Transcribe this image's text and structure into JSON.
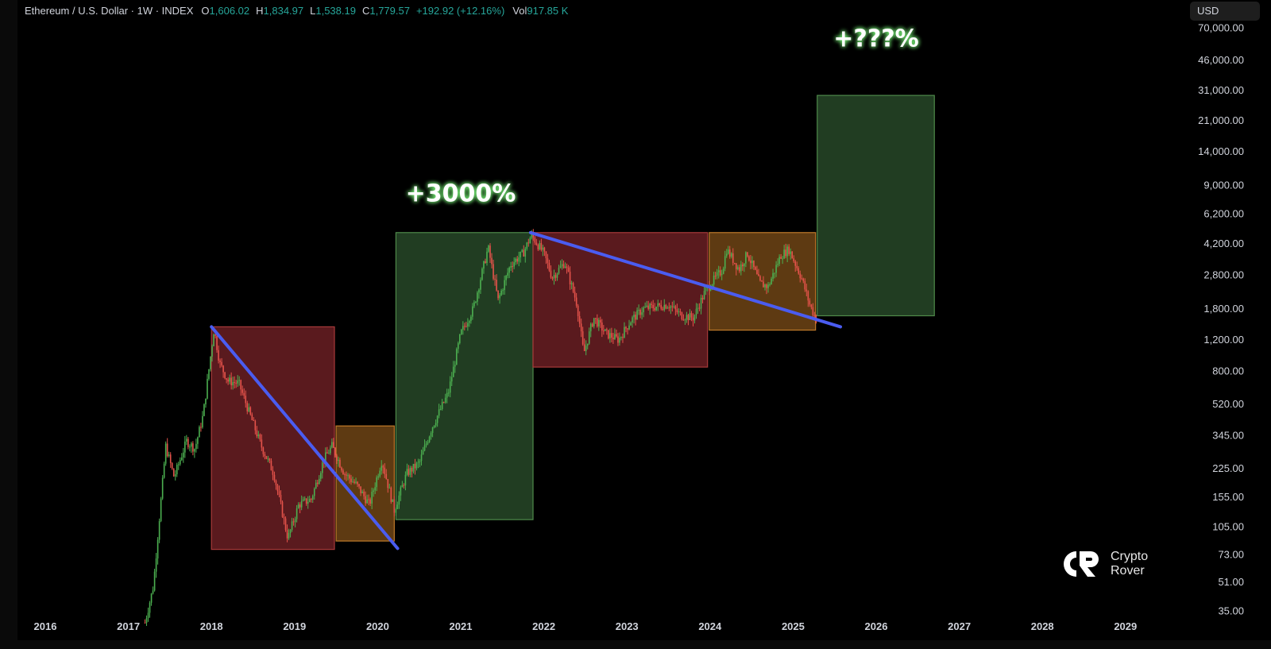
{
  "header": {
    "symbol": "Ethereum / U.S. Dollar · 1W · INDEX",
    "open_label": "O",
    "open": "1,606.02",
    "high_label": "H",
    "high": "1,834.97",
    "low_label": "L",
    "low": "1,538.19",
    "close_label": "C",
    "close": "1,779.57",
    "change": "+192.92 (+12.16%)",
    "vol_label": "Vol",
    "vol": "917.85 K"
  },
  "currency_button": "USD",
  "watermark": {
    "line1": "Crypto",
    "line2": "Rover"
  },
  "colors": {
    "background": "#000000",
    "up_candle": "#4caf50",
    "down_candle": "#e5534b",
    "trendline": "#4a5cf0",
    "zone_red_fill": "#5a1a1e",
    "zone_red_stroke": "#a83a3a",
    "zone_orange_fill": "#5e3a12",
    "zone_orange_stroke": "#c07a2a",
    "zone_green_fill": "#213d22",
    "zone_green_stroke": "#4f8a4a",
    "annotation_text": "#ffffff",
    "annotation_glow": "#7dff7d"
  },
  "chart_data": {
    "type": "candlestick",
    "title": "Ethereum / U.S. Dollar · 1W · INDEX",
    "x_ticks": [
      "2016",
      "2017",
      "2018",
      "2019",
      "2020",
      "2021",
      "2022",
      "2023",
      "2024",
      "2025",
      "2026",
      "2027",
      "2028",
      "2029"
    ],
    "y_scale": "log",
    "y_ticks": [
      "70,000.00",
      "46,000.00",
      "31,000.00",
      "21,000.00",
      "14,000.00",
      "9,000.00",
      "6,200.00",
      "4,200.00",
      "2,800.00",
      "1,800.00",
      "1,200.00",
      "800.00",
      "520.00",
      "345.00",
      "225.00",
      "155.00",
      "105.00",
      "73.00",
      "51.00",
      "35.00"
    ],
    "ylim": [
      35,
      70000
    ],
    "price_path": [
      {
        "t": 2017.2,
        "p": 30
      },
      {
        "t": 2017.3,
        "p": 48
      },
      {
        "t": 2017.45,
        "p": 300
      },
      {
        "t": 2017.55,
        "p": 200
      },
      {
        "t": 2017.7,
        "p": 320
      },
      {
        "t": 2017.8,
        "p": 290
      },
      {
        "t": 2017.9,
        "p": 450
      },
      {
        "t": 2018.03,
        "p": 1380
      },
      {
        "t": 2018.1,
        "p": 880
      },
      {
        "t": 2018.2,
        "p": 700
      },
      {
        "t": 2018.33,
        "p": 680
      },
      {
        "t": 2018.45,
        "p": 470
      },
      {
        "t": 2018.6,
        "p": 300
      },
      {
        "t": 2018.75,
        "p": 210
      },
      {
        "t": 2018.92,
        "p": 90
      },
      {
        "t": 2019.05,
        "p": 140
      },
      {
        "t": 2019.2,
        "p": 150
      },
      {
        "t": 2019.35,
        "p": 250
      },
      {
        "t": 2019.45,
        "p": 300
      },
      {
        "t": 2019.6,
        "p": 210
      },
      {
        "t": 2019.75,
        "p": 180
      },
      {
        "t": 2019.9,
        "p": 140
      },
      {
        "t": 2020.05,
        "p": 250
      },
      {
        "t": 2020.2,
        "p": 130
      },
      {
        "t": 2020.35,
        "p": 210
      },
      {
        "t": 2020.5,
        "p": 240
      },
      {
        "t": 2020.65,
        "p": 380
      },
      {
        "t": 2020.85,
        "p": 600
      },
      {
        "t": 2021.0,
        "p": 1300
      },
      {
        "t": 2021.15,
        "p": 1800
      },
      {
        "t": 2021.33,
        "p": 4000
      },
      {
        "t": 2021.45,
        "p": 2000
      },
      {
        "t": 2021.6,
        "p": 3200
      },
      {
        "t": 2021.75,
        "p": 3700
      },
      {
        "t": 2021.85,
        "p": 4700
      },
      {
        "t": 2022.0,
        "p": 3700
      },
      {
        "t": 2022.1,
        "p": 2700
      },
      {
        "t": 2022.25,
        "p": 3300
      },
      {
        "t": 2022.4,
        "p": 1900
      },
      {
        "t": 2022.48,
        "p": 1000
      },
      {
        "t": 2022.6,
        "p": 1600
      },
      {
        "t": 2022.75,
        "p": 1300
      },
      {
        "t": 2022.9,
        "p": 1200
      },
      {
        "t": 2023.05,
        "p": 1550
      },
      {
        "t": 2023.2,
        "p": 1800
      },
      {
        "t": 2023.35,
        "p": 1850
      },
      {
        "t": 2023.5,
        "p": 1900
      },
      {
        "t": 2023.65,
        "p": 1650
      },
      {
        "t": 2023.8,
        "p": 1600
      },
      {
        "t": 2023.95,
        "p": 2300
      },
      {
        "t": 2024.15,
        "p": 3000
      },
      {
        "t": 2024.2,
        "p": 3900
      },
      {
        "t": 2024.35,
        "p": 3000
      },
      {
        "t": 2024.45,
        "p": 3700
      },
      {
        "t": 2024.6,
        "p": 2500
      },
      {
        "t": 2024.7,
        "p": 2400
      },
      {
        "t": 2024.85,
        "p": 3600
      },
      {
        "t": 2024.95,
        "p": 3900
      },
      {
        "t": 2025.1,
        "p": 2700
      },
      {
        "t": 2025.2,
        "p": 1900
      },
      {
        "t": 2025.28,
        "p": 1550
      }
    ],
    "zones": [
      {
        "kind": "red",
        "t0": 2018.0,
        "t1": 2019.48,
        "p_low": 78,
        "p_high": 1420
      },
      {
        "kind": "orange",
        "t0": 2019.5,
        "t1": 2020.2,
        "p_low": 87,
        "p_high": 390
      },
      {
        "kind": "green",
        "t0": 2020.22,
        "t1": 2021.87,
        "p_low": 115,
        "p_high": 4850
      },
      {
        "kind": "red",
        "t0": 2021.87,
        "t1": 2023.97,
        "p_low": 840,
        "p_high": 4850
      },
      {
        "kind": "orange",
        "t0": 2023.99,
        "t1": 2025.27,
        "p_low": 1360,
        "p_high": 4850
      },
      {
        "kind": "green",
        "t0": 2025.29,
        "t1": 2026.7,
        "p_low": 1640,
        "p_high": 29000
      }
    ],
    "trendlines": [
      {
        "t0": 2018.0,
        "p0": 1420,
        "t1": 2020.24,
        "p1": 79
      },
      {
        "t0": 2021.84,
        "p0": 4850,
        "t1": 2025.57,
        "p1": 1420
      }
    ],
    "annotations": [
      {
        "text": "+3000%",
        "t": 2021.0,
        "p": 7300,
        "size": 30
      },
      {
        "text": "+???%",
        "t": 2026.0,
        "p": 55000,
        "size": 30
      }
    ]
  }
}
